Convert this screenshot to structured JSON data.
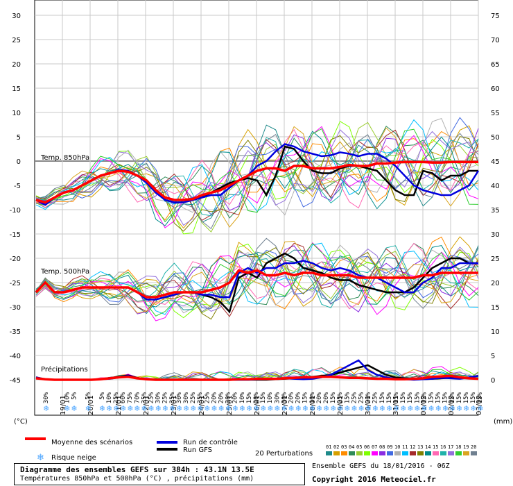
{
  "chart_data": {
    "type": "line",
    "title": "Diagramme des ensembles GEFS sur 384h : 43.1N 13.5E",
    "subtitle": "Températures 850hPa et 500hPa (°C) , précipitations (mm)",
    "run_info": "Ensemble GEFS du 18/01/2016 - 06Z",
    "copyright": "Copyright 2016 Meteociel.fr",
    "left_axis": {
      "unit_label": "(°C)",
      "min": -45,
      "max": 30,
      "ticks": [
        "30",
        "25",
        "20",
        "15",
        "10",
        "5",
        "0",
        "-5",
        "-10",
        "-15",
        "-20",
        "-25",
        "-30",
        "-35",
        "-40",
        "-45"
      ]
    },
    "right_axis": {
      "unit_label": "(mm)",
      "ticks": [
        "75",
        "70",
        "65",
        "60",
        "55",
        "50",
        "45",
        "40",
        "35",
        "30",
        "25",
        "20",
        "15",
        "10",
        "5",
        "0"
      ]
    },
    "x_axis": {
      "date_labels": [
        "19/01",
        "20/01",
        "21/01",
        "22/01",
        "23/01",
        "24/01",
        "25/01",
        "26/01",
        "27/01",
        "28/01",
        "29/01",
        "30/01",
        "31/01",
        "01/02",
        "02/02",
        "03/02"
      ]
    },
    "panel_labels": {
      "t850": "Temp. 850hPa",
      "t500": "Temp. 500hPa",
      "precip": "Précipitations"
    },
    "snow_risk_percent": [
      "30%",
      "",
      "",
      "10%",
      "5%",
      "",
      "5%",
      "",
      "5%",
      "10%",
      "25%",
      "60%",
      "75%",
      "70%",
      "35%",
      "25%",
      "30%",
      "25%",
      "35%",
      "30%",
      "30%",
      "25%",
      "35%",
      "25%",
      "20%",
      "20%",
      "20%",
      "20%",
      "10%",
      "15%",
      "20%",
      "15%",
      "10%",
      "30%",
      "30%",
      "20%",
      "20%",
      "15%",
      "10%",
      "20%",
      "20%",
      "15%",
      "25%",
      "15%",
      "25%",
      "25%",
      "20%",
      "25%",
      "15%",
      "15%",
      "15%",
      "15%",
      "15%",
      "15%",
      "15%",
      "15%",
      "15%",
      "15%",
      "15%",
      "15%",
      "15%",
      "15%",
      "15%"
    ],
    "legend": {
      "mean": "Moyenne des scénarios",
      "control": "Run de contrôle",
      "gfs": "Run GFS",
      "perturbations": "20 Perturbations",
      "snow": "Risque neige",
      "perturbation_ids": [
        "01",
        "02",
        "03",
        "04",
        "05",
        "06",
        "07",
        "08",
        "09",
        "10",
        "11",
        "12",
        "13",
        "14",
        "15",
        "16",
        "17",
        "18",
        "19",
        "20"
      ]
    },
    "colors": {
      "mean": "#ff0000",
      "control": "#0000dd",
      "gfs": "#000000",
      "perturbations": [
        "#1e8a8a",
        "#d6a000",
        "#ff8c00",
        "#2e8b57",
        "#9acd32",
        "#7fff00",
        "#ff00ff",
        "#8a2be2",
        "#4169e1",
        "#b0b0b0",
        "#00bfff",
        "#a52a2a",
        "#808000",
        "#008b8b",
        "#ff69b4",
        "#20b2aa",
        "#9370db",
        "#32cd32",
        "#daa520",
        "#708090"
      ]
    },
    "series_t850": {
      "mean": [
        -8,
        -8.5,
        -7.5,
        -6.5,
        -6,
        -5,
        -4,
        -3,
        -2.5,
        -2,
        -2.2,
        -3,
        -4,
        -6,
        -7.5,
        -8,
        -8,
        -7.8,
        -7,
        -6.5,
        -6,
        -5,
        -4,
        -3,
        -2,
        -1.5,
        -1.5,
        -2,
        -1,
        -1,
        -1.5,
        -1.5,
        -1.5,
        -1.2,
        -0.8,
        -1,
        -1,
        -0.5,
        -0.5,
        -0.3,
        -0.2,
        -0.2,
        -0.2,
        -0.3,
        -0.3,
        -0.2,
        -0.2,
        -0.2,
        -0.2
      ],
      "control": [
        -8,
        -9,
        -7.5,
        -6.5,
        -6,
        -5,
        -4,
        -3,
        -2.5,
        -1.8,
        -2,
        -3,
        -4.5,
        -6.5,
        -8,
        -8.5,
        -8.5,
        -8,
        -7.5,
        -7,
        -7,
        -5.5,
        -4,
        -3,
        -1,
        0,
        2,
        3.5,
        3,
        2,
        1.5,
        1,
        1.2,
        1.8,
        1.5,
        1,
        1.5,
        1.5,
        0.5,
        -1,
        -3,
        -5,
        -6,
        -6.5,
        -7,
        -7,
        -6,
        -5,
        -2
      ],
      "gfs": [
        -8,
        -9,
        -7.5,
        -6.5,
        -6,
        -5,
        -4,
        -3,
        -2.5,
        -1.8,
        -2,
        -3,
        -4,
        -6,
        -8,
        -8.5,
        -8.5,
        -8,
        -7.5,
        -6.5,
        -5.5,
        -4.5,
        -4,
        -3.5,
        -4,
        -7,
        -3,
        3,
        2.5,
        0,
        -2,
        -2.5,
        -2.5,
        -1.5,
        -1,
        -1,
        -1.5,
        -2,
        -4,
        -6,
        -7,
        -7,
        -2,
        -2.5,
        -4,
        -3,
        -3,
        -2,
        -2
      ]
    },
    "series_t500": {
      "mean": [
        -27,
        -25,
        -27,
        -27,
        -26.5,
        -26,
        -26,
        -26,
        -26,
        -26,
        -26,
        -27,
        -28,
        -28,
        -27.5,
        -27,
        -27,
        -27,
        -27,
        -26.5,
        -26,
        -25,
        -22.5,
        -23,
        -22.5,
        -23.5,
        -23.5,
        -23,
        -23.5,
        -23,
        -23,
        -23.5,
        -23.5,
        -23.5,
        -23.5,
        -24,
        -24,
        -24,
        -24,
        -24,
        -24,
        -24,
        -23.5,
        -23.5,
        -23,
        -23,
        -23,
        -23,
        -23
      ],
      "control": [
        -27,
        -25,
        -27,
        -27,
        -26.5,
        -26,
        -26,
        -26,
        -26,
        -26,
        -26,
        -27,
        -28.5,
        -28.5,
        -28,
        -27.5,
        -27,
        -27,
        -27.5,
        -27.5,
        -28,
        -28,
        -23,
        -22,
        -23,
        -22,
        -22,
        -21,
        -21,
        -20.5,
        -21,
        -22,
        -22.5,
        -22,
        -22.5,
        -23.5,
        -24,
        -24,
        -25,
        -26,
        -27,
        -27,
        -25,
        -24,
        -22,
        -22,
        -21,
        -21,
        -21
      ],
      "gfs": [
        -27,
        -25,
        -27,
        -27,
        -26.5,
        -26,
        -26,
        -26,
        -26,
        -26,
        -26,
        -27,
        -28,
        -28,
        -27.5,
        -27,
        -27,
        -27,
        -27.5,
        -28,
        -29,
        -31,
        -24,
        -23,
        -24,
        -21,
        -20,
        -19,
        -20,
        -22,
        -22.5,
        -23,
        -24,
        -24.5,
        -24.5,
        -25.5,
        -26,
        -26.5,
        -27,
        -27,
        -27,
        -26,
        -24,
        -22,
        -21,
        -20,
        -20,
        -21,
        -21
      ]
    },
    "series_precip_mm": {
      "mean": [
        0.3,
        0.1,
        0,
        0,
        0,
        0,
        0,
        0.1,
        0.3,
        0.5,
        0.6,
        0.3,
        0.1,
        0,
        0,
        0,
        0,
        0,
        0,
        0,
        0,
        0,
        0.1,
        0.1,
        0.2,
        0.2,
        0.2,
        0.3,
        0.4,
        0.5,
        0.5,
        0.6,
        0.6,
        0.5,
        0.4,
        0.4,
        0.3,
        0.2,
        0.2,
        0.1,
        0.1,
        0.2,
        0.3,
        0.6,
        0.7,
        0.8,
        0.5,
        0.3,
        0.2
      ],
      "control": [
        0.5,
        0.1,
        0,
        0,
        0,
        0,
        0,
        0.1,
        0.2,
        0.5,
        0.8,
        0.3,
        0.1,
        0,
        0,
        0,
        0,
        0,
        0,
        0,
        0,
        0,
        0,
        0,
        0.1,
        0.2,
        0.2,
        0.3,
        0.2,
        0.1,
        0.2,
        0.5,
        1,
        2,
        3,
        4,
        2,
        1,
        0.5,
        0.2,
        0.1,
        0,
        0.1,
        0.2,
        0.4,
        0.3,
        0.2,
        0.5,
        0.8
      ],
      "gfs": [
        0.5,
        0.1,
        0,
        0,
        0,
        0,
        0,
        0.1,
        0.4,
        0.6,
        0.9,
        0.4,
        0.1,
        0,
        0,
        0,
        0,
        0,
        0,
        0,
        0,
        0,
        0,
        0,
        0,
        0,
        0.1,
        0.2,
        0.3,
        0.5,
        0.6,
        0.8,
        1,
        1.5,
        2,
        2.5,
        3,
        2,
        1,
        0.5,
        0.3,
        0.2,
        0.1,
        0.2,
        0.3,
        0.4,
        0.3,
        0.3,
        0.2
      ]
    }
  }
}
